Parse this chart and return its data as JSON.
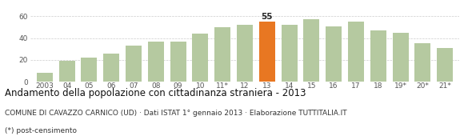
{
  "categories": [
    "2003",
    "04",
    "05",
    "06",
    "07",
    "08",
    "09",
    "10",
    "11*",
    "12",
    "13",
    "14",
    "15",
    "16",
    "17",
    "18",
    "19*",
    "20*",
    "21*"
  ],
  "values": [
    8,
    19,
    22,
    26,
    33,
    37,
    37,
    44,
    50,
    52,
    55,
    52,
    57,
    51,
    55,
    47,
    45,
    35,
    31
  ],
  "bar_colors": [
    "#b5c9a0",
    "#b5c9a0",
    "#b5c9a0",
    "#b5c9a0",
    "#b5c9a0",
    "#b5c9a0",
    "#b5c9a0",
    "#b5c9a0",
    "#b5c9a0",
    "#b5c9a0",
    "#e87722",
    "#b5c9a0",
    "#b5c9a0",
    "#b5c9a0",
    "#b5c9a0",
    "#b5c9a0",
    "#b5c9a0",
    "#b5c9a0",
    "#b5c9a0"
  ],
  "highlight_index": 10,
  "highlight_label": "55",
  "ylim": [
    0,
    65
  ],
  "yticks": [
    0,
    20,
    40,
    60
  ],
  "title": "Andamento della popolazione con cittadinanza straniera - 2013",
  "subtitle": "COMUNE DI CAVAZZO CARNICO (UD) · Dati ISTAT 1° gennaio 2013 · Elaborazione TUTTITALIA.IT",
  "footnote": "(*) post-censimento",
  "background_color": "#ffffff",
  "grid_color": "#cccccc",
  "bar_edge_color": "none",
  "title_fontsize": 8.5,
  "subtitle_fontsize": 6.5,
  "footnote_fontsize": 6.5,
  "tick_fontsize": 6.5,
  "label_fontsize": 7.5
}
